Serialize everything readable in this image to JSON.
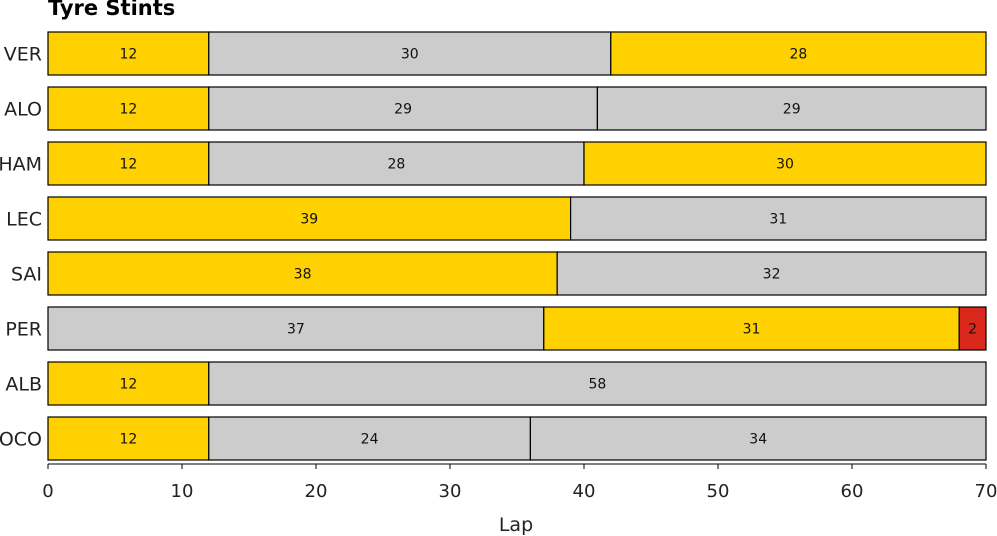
{
  "chart_data": {
    "type": "bar",
    "orientation": "horizontal-stacked",
    "title": "Tyre Stints",
    "xlabel": "Lap",
    "ylabel": "",
    "xlim": [
      0,
      70
    ],
    "xticks": [
      0,
      10,
      20,
      30,
      40,
      50,
      60,
      70
    ],
    "grid": false,
    "legend": "none",
    "compound_colors": {
      "yellow": "#FFD100",
      "grey": "#CCCCCC",
      "red": "#DA291C"
    },
    "drivers": [
      {
        "name": "VER",
        "stints": [
          {
            "laps": 12,
            "compound": "yellow"
          },
          {
            "laps": 30,
            "compound": "grey"
          },
          {
            "laps": 28,
            "compound": "yellow"
          }
        ]
      },
      {
        "name": "ALO",
        "stints": [
          {
            "laps": 12,
            "compound": "yellow"
          },
          {
            "laps": 29,
            "compound": "grey"
          },
          {
            "laps": 29,
            "compound": "grey"
          }
        ]
      },
      {
        "name": "HAM",
        "stints": [
          {
            "laps": 12,
            "compound": "yellow"
          },
          {
            "laps": 28,
            "compound": "grey"
          },
          {
            "laps": 30,
            "compound": "yellow"
          }
        ]
      },
      {
        "name": "LEC",
        "stints": [
          {
            "laps": 39,
            "compound": "yellow"
          },
          {
            "laps": 31,
            "compound": "grey"
          }
        ]
      },
      {
        "name": "SAI",
        "stints": [
          {
            "laps": 38,
            "compound": "yellow"
          },
          {
            "laps": 32,
            "compound": "grey"
          }
        ]
      },
      {
        "name": "PER",
        "stints": [
          {
            "laps": 37,
            "compound": "grey"
          },
          {
            "laps": 31,
            "compound": "yellow"
          },
          {
            "laps": 2,
            "compound": "red"
          }
        ]
      },
      {
        "name": "ALB",
        "stints": [
          {
            "laps": 12,
            "compound": "yellow"
          },
          {
            "laps": 58,
            "compound": "grey"
          }
        ]
      },
      {
        "name": "OCO",
        "stints": [
          {
            "laps": 12,
            "compound": "yellow"
          },
          {
            "laps": 24,
            "compound": "grey"
          },
          {
            "laps": 34,
            "compound": "grey"
          }
        ]
      }
    ]
  }
}
